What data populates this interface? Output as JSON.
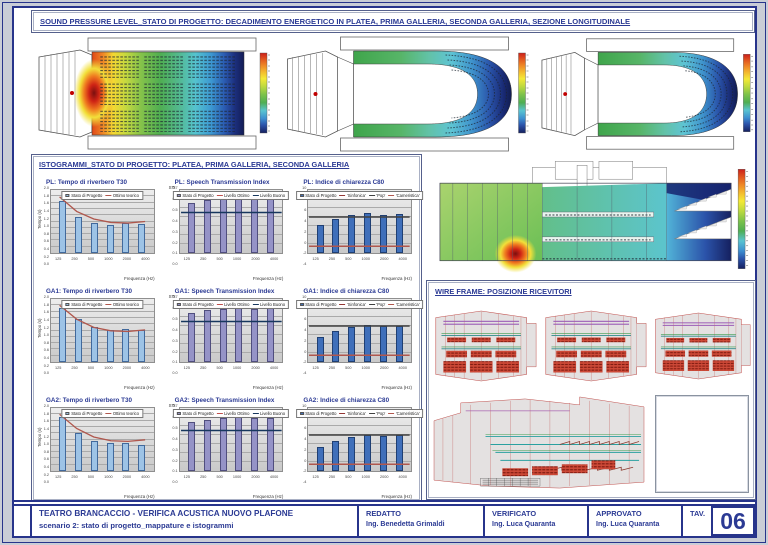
{
  "titles": {
    "top": "SOUND PRESSURE LEVEL_STATO DI PROGETTO: DECADIMENTO ENERGETICO IN PLATEA, PRIMA GALLERIA, SECONDA GALLERIA, SEZIONE LONGITUDINALE",
    "histograms": "ISTOGRAMMI_STATO DI PROGETTO: PLATEA, PRIMA GALLERIA, SECONDA GALLERIA",
    "wireframe": "WIRE FRAME: POSIZIONE RICEVITORI"
  },
  "title_block": {
    "project_title": "TEATRO BRANCACCIO - VERIFICA ACUSTICA NUOVO PLAFONE",
    "subtitle": "scenario 2: stato di progetto_mappature e istogrammi",
    "redatto_label": "REDATTO",
    "redatto_name": "Ing. Benedetta Grimaldi",
    "verificato_label": "VERIFICATO",
    "verificato_name": "Ing. Luca Quaranta",
    "approvato_label": "APPROVATO",
    "approvato_name": "Ing. Luca Quaranta",
    "tav_label": "TAV.",
    "tav_number": "06"
  },
  "colors": {
    "frame_navy": "#27348b",
    "title_navy": "#2b3a94",
    "t30_bar": "#9dc3e6",
    "sti_bar": "#9593c7",
    "c80_bar": "#3f6fba",
    "optimum_curve": "#b0574d",
    "spl_scale": [
      "#cc1f1a",
      "#ef8a26",
      "#f4e936",
      "#7cc24a",
      "#59c4d1",
      "#3d8fd0",
      "#15205f"
    ]
  },
  "sound_maps": {
    "views": [
      "platea",
      "prima galleria",
      "seconda galleria",
      "sezione longitudinale"
    ],
    "source_marker": "sound-source",
    "colorbar": "SPL color scale red(high) to dark blue(low)"
  },
  "chart_data": [
    {
      "title": "PL: Tempo di riverbero T30",
      "type": "bar",
      "categories": [
        "125",
        "250",
        "500",
        "1000",
        "2000",
        "4000"
      ],
      "values": [
        1.65,
        1.15,
        0.95,
        0.9,
        0.95,
        0.92
      ],
      "ylim": [
        0,
        2
      ],
      "ystep": 0.2,
      "ydec": 1,
      "ylabel": "Tempo (s)",
      "ylabel_pos": "left",
      "xlabel": "Frequenza (Hz)",
      "bar_color": "#9dc3e6",
      "bar_border": "#41699c",
      "curve": [
        1.78,
        1.32,
        1.08,
        0.97,
        0.95,
        1.0
      ],
      "curve_color": "#b0574d",
      "lines": [],
      "legend": [
        {
          "type": "bar",
          "color": "#9dc3e6",
          "label": "Stato di Progetto"
        },
        {
          "type": "line",
          "color": "#b0574d",
          "label": "Ottimo teorico"
        }
      ]
    },
    {
      "title": "PL: Speech Transmission Index",
      "type": "bar",
      "categories": [
        "125",
        "250",
        "500",
        "1000",
        "2000",
        "4000"
      ],
      "values": [
        0.56,
        0.59,
        0.61,
        0.63,
        0.62,
        0.62
      ],
      "ylim": [
        0,
        0.7
      ],
      "ystep": 0.1,
      "ydec": 1,
      "ylabel": "STI",
      "ylabel_pos": "topleft",
      "xlabel": "Frequenza (Hz)",
      "bar_color": "#9593c7",
      "bar_border": "#504e7e",
      "lines": [
        {
          "y": 0.6,
          "color": "#c0504d"
        },
        {
          "y": 0.45,
          "color": "#17375e"
        }
      ],
      "legend": [
        {
          "type": "bar",
          "color": "#9593c7",
          "label": "Stato di Progetto"
        },
        {
          "type": "line",
          "color": "#c0504d",
          "label": "Livello Ottimo"
        },
        {
          "type": "line",
          "color": "#17375e",
          "label": "Livello Buono"
        }
      ]
    },
    {
      "title": "PL: Indice di chiarezza C80",
      "type": "bar",
      "categories": [
        "125",
        "250",
        "500",
        "1000",
        "2000",
        "4000"
      ],
      "values": [
        2.3,
        3.6,
        4.4,
        4.8,
        4.5,
        4.6
      ],
      "ylim": [
        -4,
        10
      ],
      "ystep": 2,
      "ydec": 0,
      "ylabel": "C80 (dB)",
      "ylabel_pos": "topright",
      "xlabel": "Frequenza (Hz)",
      "bar_color": "#3f6fba",
      "bar_border": "#1f3f73",
      "lines": [
        {
          "y": 8.2,
          "color": "#943634"
        },
        {
          "y": 4.0,
          "color": "#404040"
        },
        {
          "y": -2.5,
          "color": "#b0574d"
        }
      ],
      "legend": [
        {
          "type": "bar",
          "color": "#3f6fba",
          "label": "Stato di Progetto"
        },
        {
          "type": "line",
          "color": "#943634",
          "label": "'Sinfonica'"
        },
        {
          "type": "line",
          "color": "#404040",
          "label": "'Pop'"
        },
        {
          "type": "line",
          "color": "#b0574d",
          "label": "'Cameristica'"
        }
      ]
    },
    {
      "title": "GA1: Tempo di riverbero T30",
      "type": "bar",
      "categories": [
        "125",
        "250",
        "500",
        "1000",
        "2000",
        "4000"
      ],
      "values": [
        1.7,
        1.38,
        1.12,
        1.02,
        1.06,
        1.02
      ],
      "ylim": [
        0,
        2
      ],
      "ystep": 0.2,
      "ydec": 1,
      "ylabel": "Tempo (s)",
      "ylabel_pos": "left",
      "xlabel": "Frequenza (Hz)",
      "bar_color": "#9dc3e6",
      "bar_border": "#41699c",
      "curve": [
        1.8,
        1.36,
        1.1,
        0.99,
        0.97,
        1.02
      ],
      "curve_color": "#b0574d",
      "lines": [],
      "legend": [
        {
          "type": "bar",
          "color": "#9dc3e6",
          "label": "Stato di Progetto"
        },
        {
          "type": "line",
          "color": "#b0574d",
          "label": "Ottimo teorico"
        }
      ]
    },
    {
      "title": "GA1: Speech Transmission Index",
      "type": "bar",
      "categories": [
        "125",
        "250",
        "500",
        "1000",
        "2000",
        "4000"
      ],
      "values": [
        0.55,
        0.58,
        0.59,
        0.6,
        0.59,
        0.6
      ],
      "ylim": [
        0,
        0.7
      ],
      "ystep": 0.1,
      "ydec": 1,
      "ylabel": "STI",
      "ylabel_pos": "topleft",
      "xlabel": "Frequenza (Hz)",
      "bar_color": "#9593c7",
      "bar_border": "#504e7e",
      "lines": [
        {
          "y": 0.6,
          "color": "#c0504d"
        },
        {
          "y": 0.45,
          "color": "#17375e"
        }
      ],
      "legend": [
        {
          "type": "bar",
          "color": "#9593c7",
          "label": "Stato di Progetto"
        },
        {
          "type": "line",
          "color": "#c0504d",
          "label": "Livello Ottimo"
        },
        {
          "type": "line",
          "color": "#17375e",
          "label": "Livello Buono"
        }
      ]
    },
    {
      "title": "GA1: Indice di chiarezza C80",
      "type": "bar",
      "categories": [
        "125",
        "250",
        "500",
        "1000",
        "2000",
        "4000"
      ],
      "values": [
        1.6,
        2.8,
        3.8,
        4.2,
        3.9,
        4.0
      ],
      "ylim": [
        -4,
        10
      ],
      "ystep": 2,
      "ydec": 0,
      "ylabel": "C80 (dB)",
      "ylabel_pos": "topright",
      "xlabel": "Frequenza (Hz)",
      "bar_color": "#3f6fba",
      "bar_border": "#1f3f73",
      "lines": [
        {
          "y": 8.2,
          "color": "#943634"
        },
        {
          "y": 4.0,
          "color": "#404040"
        },
        {
          "y": -2.5,
          "color": "#b0574d"
        }
      ],
      "legend": [
        {
          "type": "bar",
          "color": "#3f6fba",
          "label": "Stato di Progetto"
        },
        {
          "type": "line",
          "color": "#943634",
          "label": "'Sinfonica'"
        },
        {
          "type": "line",
          "color": "#404040",
          "label": "'Pop'"
        },
        {
          "type": "line",
          "color": "#b0574d",
          "label": "'Cameristica'"
        }
      ]
    },
    {
      "title": "GA2: Tempo di riverbero T30",
      "type": "bar",
      "categories": [
        "125",
        "250",
        "500",
        "1000",
        "2000",
        "4000"
      ],
      "values": [
        1.72,
        1.2,
        0.95,
        0.88,
        0.9,
        0.83
      ],
      "ylim": [
        0,
        2
      ],
      "ystep": 0.2,
      "ydec": 1,
      "ylabel": "Tempo (s)",
      "ylabel_pos": "left",
      "xlabel": "Frequenza (Hz)",
      "bar_color": "#9dc3e6",
      "bar_border": "#41699c",
      "curve": [
        1.8,
        1.35,
        1.08,
        0.96,
        0.94,
        0.99
      ],
      "curve_color": "#b0574d",
      "lines": [],
      "legend": [
        {
          "type": "bar",
          "color": "#9dc3e6",
          "label": "Stato di Progetto"
        },
        {
          "type": "line",
          "color": "#b0574d",
          "label": "Ottimo teorico"
        }
      ]
    },
    {
      "title": "GA2: Speech Transmission Index",
      "type": "bar",
      "categories": [
        "125",
        "250",
        "500",
        "1000",
        "2000",
        "4000"
      ],
      "values": [
        0.55,
        0.57,
        0.59,
        0.6,
        0.59,
        0.59
      ],
      "ylim": [
        0,
        0.7
      ],
      "ystep": 0.1,
      "ydec": 1,
      "ylabel": "STI",
      "ylabel_pos": "topleft",
      "xlabel": "Frequenza (Hz)",
      "bar_color": "#9593c7",
      "bar_border": "#504e7e",
      "lines": [
        {
          "y": 0.6,
          "color": "#c0504d"
        },
        {
          "y": 0.45,
          "color": "#17375e"
        }
      ],
      "legend": [
        {
          "type": "bar",
          "color": "#9593c7",
          "label": "Stato di Progetto"
        },
        {
          "type": "line",
          "color": "#c0504d",
          "label": "Livello Ottimo"
        },
        {
          "type": "line",
          "color": "#17375e",
          "label": "Livello Buono"
        }
      ]
    },
    {
      "title": "GA2: Indice di chiarezza C80",
      "type": "bar",
      "categories": [
        "125",
        "250",
        "500",
        "1000",
        "2000",
        "4000"
      ],
      "values": [
        1.4,
        2.6,
        3.6,
        4.1,
        3.8,
        3.9
      ],
      "ylim": [
        -4,
        10
      ],
      "ystep": 2,
      "ydec": 0,
      "ylabel": "C80 (dB)",
      "ylabel_pos": "topright",
      "xlabel": "Frequenza (Hz)",
      "bar_color": "#3f6fba",
      "bar_border": "#1f3f73",
      "lines": [
        {
          "y": 8.2,
          "color": "#943634"
        },
        {
          "y": 4.0,
          "color": "#404040"
        },
        {
          "y": -2.5,
          "color": "#b0574d"
        }
      ],
      "legend": [
        {
          "type": "bar",
          "color": "#3f6fba",
          "label": "Stato di Progetto"
        },
        {
          "type": "line",
          "color": "#943634",
          "label": "'Sinfonica'"
        },
        {
          "type": "line",
          "color": "#404040",
          "label": "'Pop'"
        },
        {
          "type": "line",
          "color": "#b0574d",
          "label": "'Cameristica'"
        }
      ]
    }
  ]
}
